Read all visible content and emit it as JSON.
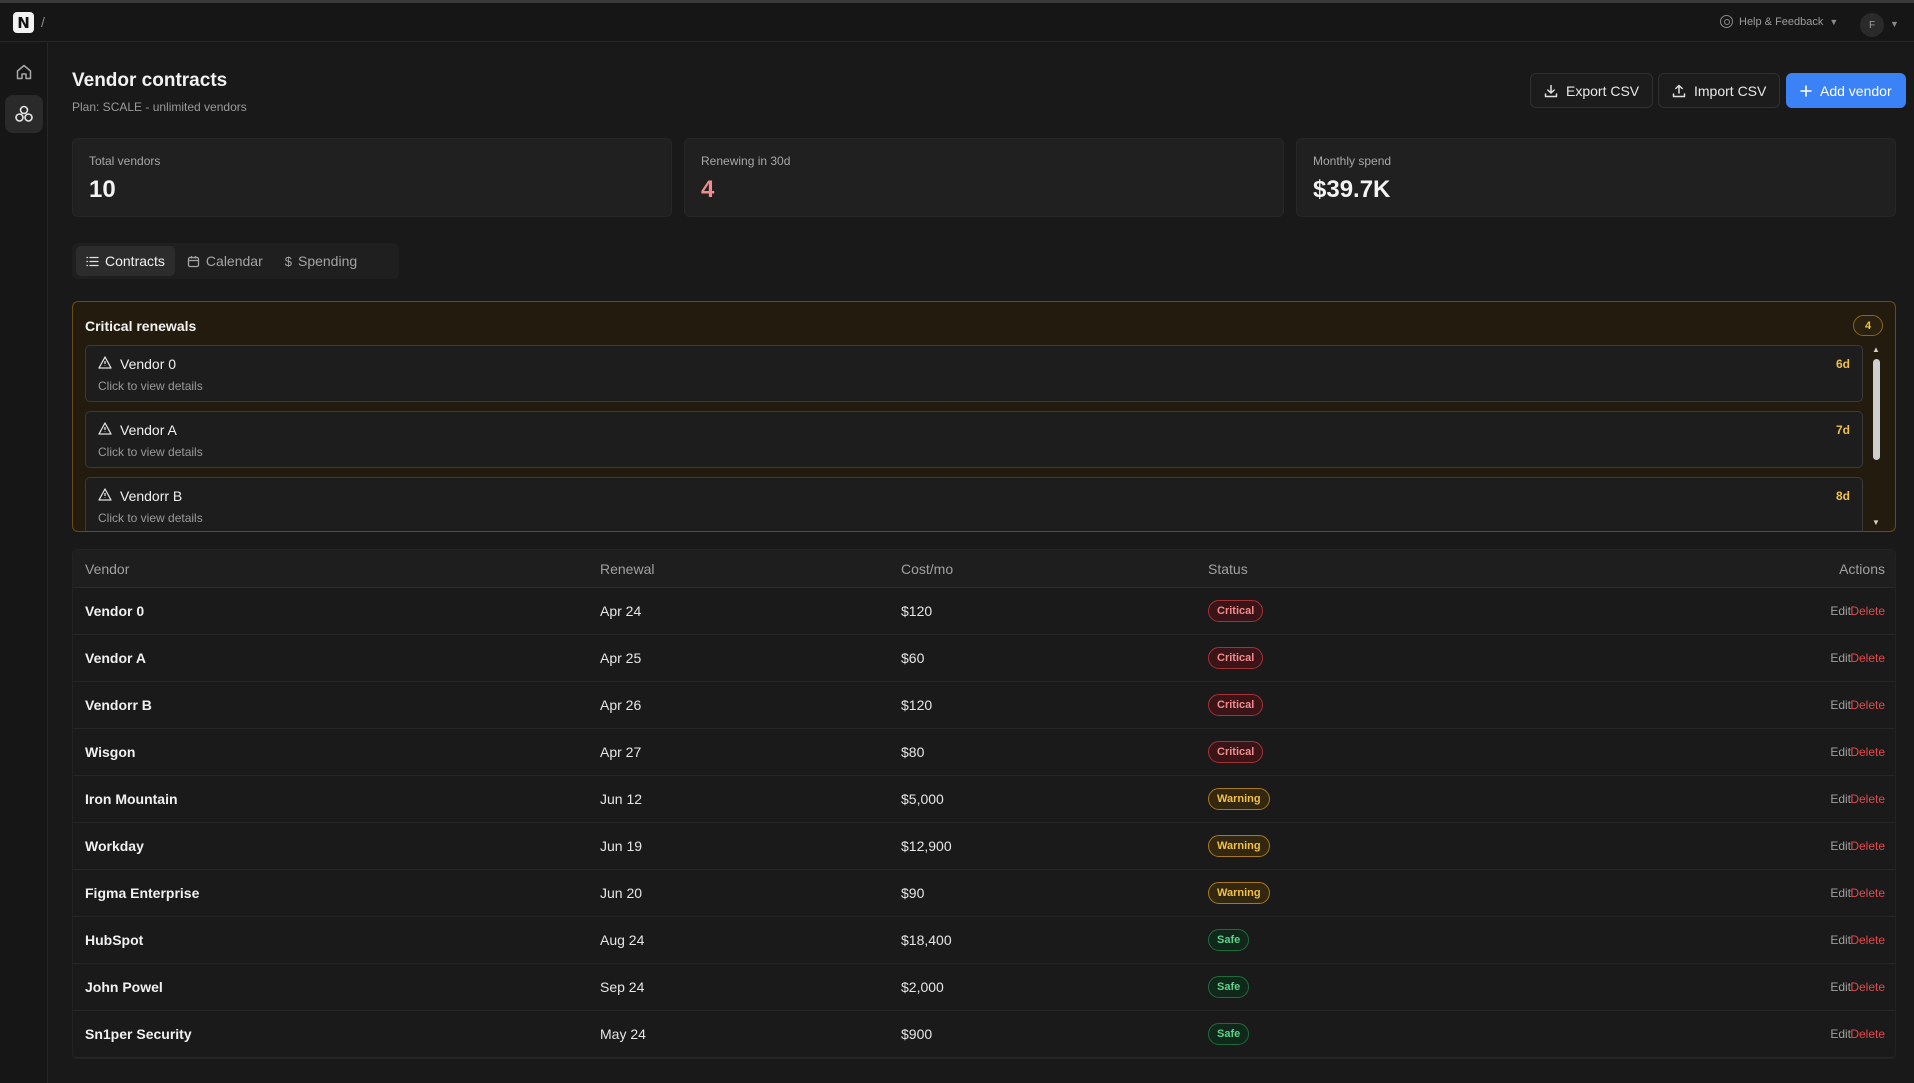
{
  "topbar": {
    "slash": "/",
    "help_label": "Help & Feedback",
    "avatar_initial": "F"
  },
  "header": {
    "title": "Vendor contracts",
    "subtitle": "Plan: SCALE - unlimited vendors"
  },
  "actions": {
    "export_label": "Export CSV",
    "import_label": "Import CSV",
    "add_label": "Add vendor"
  },
  "stats": [
    {
      "label": "Total vendors",
      "value": "10",
      "color": "#f2f2f2"
    },
    {
      "label": "Renewing in 30d",
      "value": "4",
      "color": "#f28b8f"
    },
    {
      "label": "Monthly spend",
      "value": "$39.7K",
      "color": "#f2f2f2"
    }
  ],
  "tabs": [
    {
      "label": "Contracts",
      "icon": "list-icon",
      "active": true
    },
    {
      "label": "Calendar",
      "icon": "calendar-icon",
      "active": false
    },
    {
      "label": "Spending",
      "icon": "dollar-icon",
      "active": false
    }
  ],
  "critical": {
    "title": "Critical renewals",
    "count": "4",
    "items": [
      {
        "name": "Vendor 0",
        "sub": "Click to view details",
        "days": "6d"
      },
      {
        "name": "Vendor A",
        "sub": "Click to view details",
        "days": "7d"
      },
      {
        "name": "Vendorr B",
        "sub": "Click to view details",
        "days": "8d"
      }
    ]
  },
  "table": {
    "headers": {
      "vendor": "Vendor",
      "renewal": "Renewal",
      "cost": "Cost/mo",
      "status": "Status",
      "actions": "Actions"
    },
    "edit_label": "Edit",
    "delete_label": "Delete",
    "rows": [
      {
        "vendor": "Vendor 0",
        "renewal": "Apr 24",
        "cost": "$120",
        "status": "Critical"
      },
      {
        "vendor": "Vendor A",
        "renewal": "Apr 25",
        "cost": "$60",
        "status": "Critical"
      },
      {
        "vendor": "Vendorr B",
        "renewal": "Apr 26",
        "cost": "$120",
        "status": "Critical"
      },
      {
        "vendor": "Wisgon",
        "renewal": "Apr 27",
        "cost": "$80",
        "status": "Critical"
      },
      {
        "vendor": "Iron Mountain",
        "renewal": "Jun 12",
        "cost": "$5,000",
        "status": "Warning"
      },
      {
        "vendor": "Workday",
        "renewal": "Jun 19",
        "cost": "$12,900",
        "status": "Warning"
      },
      {
        "vendor": "Figma Enterprise",
        "renewal": "Jun 20",
        "cost": "$90",
        "status": "Warning"
      },
      {
        "vendor": "HubSpot",
        "renewal": "Aug 24",
        "cost": "$18,400",
        "status": "Safe"
      },
      {
        "vendor": "John Powel",
        "renewal": "Sep 24",
        "cost": "$2,000",
        "status": "Safe"
      },
      {
        "vendor": "Sn1per Security",
        "renewal": "May 24",
        "cost": "$900",
        "status": "Safe"
      }
    ]
  },
  "colors": {
    "accent": "#3b82f6",
    "critical": "#e5484d",
    "warning": "#f0c04a",
    "safe": "#5fd08a"
  }
}
